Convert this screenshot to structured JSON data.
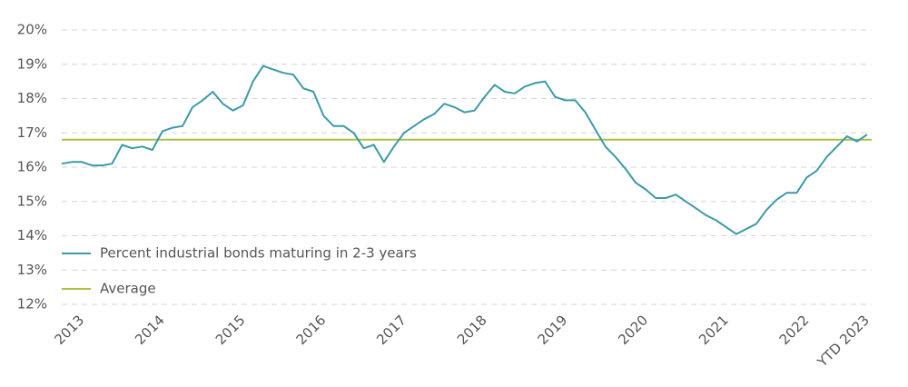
{
  "chart_data": {
    "type": "line",
    "categories": [
      null,
      null,
      "2013",
      null,
      null,
      null,
      null,
      null,
      null,
      null,
      "2014",
      null,
      null,
      null,
      null,
      null,
      null,
      null,
      "2015",
      null,
      null,
      null,
      null,
      null,
      null,
      null,
      "2016",
      null,
      null,
      null,
      null,
      null,
      null,
      null,
      "2017",
      null,
      null,
      null,
      null,
      null,
      null,
      null,
      "2018",
      null,
      null,
      null,
      null,
      null,
      null,
      null,
      "2019",
      null,
      null,
      null,
      null,
      null,
      null,
      null,
      "2020",
      null,
      null,
      null,
      null,
      null,
      null,
      null,
      "2021",
      null,
      null,
      null,
      null,
      null,
      null,
      null,
      "2022",
      null,
      null,
      null,
      null,
      null,
      "YTD 2023"
    ],
    "series": [
      {
        "name": "Percent industrial bonds maturing in 2-3 years",
        "color": "#3b9aa8",
        "values": [
          16.1,
          16.15,
          16.15,
          16.05,
          16.05,
          16.1,
          16.65,
          16.55,
          16.6,
          16.5,
          17.05,
          17.15,
          17.2,
          17.75,
          17.95,
          18.2,
          17.85,
          17.65,
          17.8,
          18.5,
          18.95,
          18.85,
          18.75,
          18.7,
          18.3,
          18.2,
          17.5,
          17.2,
          17.2,
          17.0,
          16.55,
          16.65,
          16.15,
          16.6,
          17.0,
          17.2,
          17.4,
          17.55,
          17.85,
          17.75,
          17.6,
          17.65,
          18.05,
          18.4,
          18.2,
          18.15,
          18.35,
          18.45,
          18.5,
          18.05,
          17.95,
          17.95,
          17.6,
          17.1,
          16.6,
          16.3,
          15.95,
          15.55,
          15.35,
          15.1,
          15.1,
          15.2,
          15.0,
          14.8,
          14.6,
          14.45,
          14.25,
          14.05,
          14.2,
          14.35,
          14.75,
          15.05,
          15.25,
          15.25,
          15.7,
          15.9,
          16.3,
          16.6,
          16.9,
          16.75,
          16.95
        ]
      }
    ],
    "average": {
      "name": "Average",
      "value": 16.8,
      "color": "#a9c23f"
    },
    "ylim": [
      12,
      20
    ],
    "yticks": [
      {
        "value": 12,
        "label": "12%"
      },
      {
        "value": 13,
        "label": "13%"
      },
      {
        "value": 14,
        "label": "14%"
      },
      {
        "value": 15,
        "label": "15%"
      },
      {
        "value": 16,
        "label": "16%"
      },
      {
        "value": 17,
        "label": "17%"
      },
      {
        "value": 18,
        "label": "18%"
      },
      {
        "value": 19,
        "label": "19%"
      },
      {
        "value": 20,
        "label": "20%"
      }
    ],
    "grid": true,
    "legend": "lower left"
  }
}
